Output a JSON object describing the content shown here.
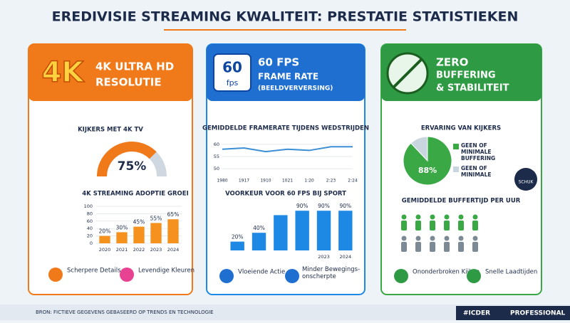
{
  "title": "EREDIVISIE STREAMING KWALITEIT: PRESTATIE STATISTIEKEN",
  "panels": [
    {
      "badge": "4K",
      "heading": [
        "4K ULTRA HD",
        "RESOLUTIE"
      ],
      "features": [
        "Scherpere Details",
        "Levendige Kleuren"
      ]
    },
    {
      "badge": [
        "60",
        "fps"
      ],
      "heading": [
        "60 FPS",
        "FRAME RATE",
        "(BEELDVERVERSING)"
      ],
      "features": [
        "Vloeiende Actie",
        "Minder Bewegings-onscherpte"
      ]
    },
    {
      "heading": [
        "ZERO",
        "BUFFERING",
        "& STABILITEIT"
      ],
      "subtitle": "GEMIDDELDE BUFFERTIJD PER UUR",
      "gauge_label": "SCHUK",
      "features": [
        "Ononderbroken Kijken",
        "Snelle Laadtijden"
      ]
    }
  ],
  "footer": {
    "source": "BRON: FICTIEVE GEGEVENS GEBASEERD OP TRENDS EN TECHNOLOGIE",
    "tag": "#ICDER",
    "brand": "PROFESSIONAL"
  },
  "chart_data": [
    {
      "type": "gauge",
      "title": "KIJKERS MET 4K TV",
      "values": [
        75
      ],
      "value_labels": [
        "75%"
      ],
      "ylim": [
        0,
        100
      ],
      "color": "#f07a1a"
    },
    {
      "type": "bar",
      "title": "4K STREAMING ADOPTIE GROEI",
      "categories": [
        "2020",
        "2021",
        "2022",
        "2023",
        "2024"
      ],
      "values": [
        20,
        30,
        45,
        55,
        65
      ],
      "value_labels": [
        "20%",
        "30%",
        "45%",
        "55%",
        "65%"
      ],
      "ylim": [
        0,
        100
      ],
      "yticks": [
        0,
        20,
        40,
        60,
        80,
        100
      ],
      "color": "#f5921e",
      "grid": true
    },
    {
      "type": "line",
      "title": "GEMIDDELDE FRAMERATE TIJDENS WEDSTRIJDEN",
      "categories": [
        "1980",
        "1917",
        "1910",
        "1021",
        "1:20",
        "2:23",
        "2:24"
      ],
      "values": [
        58,
        58.5,
        57,
        58,
        57.5,
        59,
        59
      ],
      "ylim": [
        48,
        62
      ],
      "yticks": [
        50,
        55,
        60
      ],
      "color": "#3a8fd6",
      "grid": true
    },
    {
      "type": "bar",
      "title": "VOORKEUR VOOR 60 FPS BIJ SPORT",
      "categories": [
        null,
        null,
        null,
        null,
        "2023",
        "2024"
      ],
      "values": [
        20,
        40,
        80,
        90,
        90,
        90
      ],
      "value_labels": [
        "20%",
        "40%",
        null,
        "90%",
        "90%",
        "90%"
      ],
      "ylim": [
        0,
        100
      ],
      "color": "#1e88e5",
      "grid": false
    },
    {
      "type": "pie",
      "title": "ERVARING VAN KIJKERS",
      "categories": [
        "GEEN OF MINIMALE BUFFERING",
        "GEEN OF MINIMALE"
      ],
      "values": [
        88,
        12
      ],
      "value_labels": [
        "88%",
        null
      ],
      "colors": [
        "#3aa845",
        "#c9d6df"
      ]
    }
  ]
}
